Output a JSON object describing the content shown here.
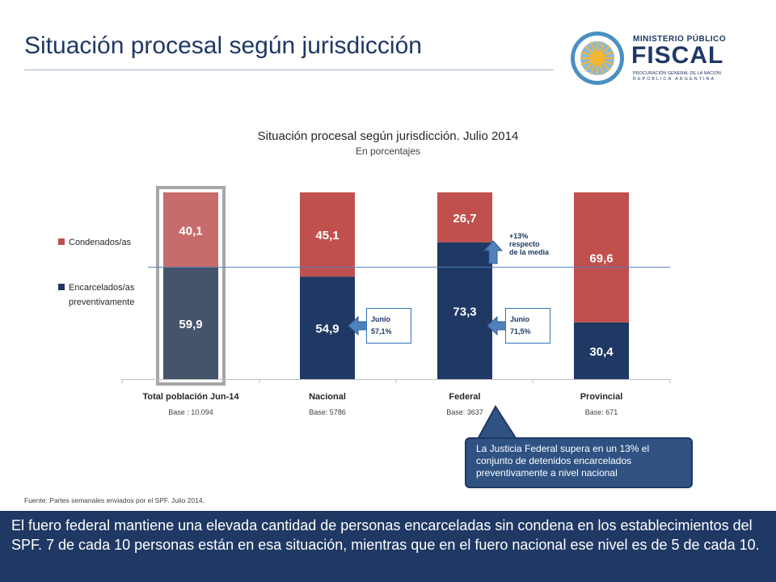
{
  "slide": {
    "title": "Situación procesal según jurisdicción",
    "source": "Fuente: Partes semanales enviados por el SPF. Julio 2014.",
    "footer_text": "El fuero federal mantiene una elevada cantidad de personas encarceladas sin condena en los establecimientos del SPF. 7 de cada 10 personas están en esa situación, mientras que en el fuero nacional ese nivel es de 5 de cada 10."
  },
  "logo": {
    "line1": "MINISTERIO PÚBLICO",
    "line2": "FISCAL",
    "line3": "PROCURACIÓN GENERAL DE LA NACIÓN",
    "line4": "REPÚBLICA ARGENTINA",
    "color": "#1f3864"
  },
  "chart_data": {
    "type": "bar",
    "stacked": true,
    "title": "Situación procesal según jurisdicción. Julio 2014",
    "subtitle": "En porcentajes",
    "categories": [
      "Total población Jun-14",
      "Nacional",
      "Federal",
      "Provincial"
    ],
    "bases": [
      "Base : 10.094",
      "Base: 5786",
      "Base: 3637",
      "Base: 671"
    ],
    "series": [
      {
        "name": "Encarcelados/as preventivamente",
        "values": [
          59.9,
          54.9,
          73.3,
          30.4
        ],
        "labels": [
          "59,9",
          "54,9",
          "73,3",
          "30,4"
        ],
        "color": "#1f3864",
        "highlight_color": "#44546a"
      },
      {
        "name": "Condenados/as",
        "values": [
          40.1,
          45.1,
          26.7,
          69.6
        ],
        "labels": [
          "40,1",
          "45,1",
          "26,7",
          "69,6"
        ],
        "color": "#c0504d",
        "highlight_color": "#c86b6b"
      }
    ],
    "ylim": [
      0,
      100
    ],
    "reference_line": 59.9,
    "legend_position": "left",
    "highlighted_category": "Total población Jun-14",
    "annotations": {
      "nacional_june": {
        "line1": "Junio",
        "line2": "57,1%"
      },
      "federal_june": {
        "line1": "Junio",
        "line2": "71,5%"
      },
      "federal_vs_mean": {
        "line1": "+13%",
        "line2": "respecto",
        "line3": "de la media"
      },
      "callout": "La Justicia Federal supera en un 13% el conjunto de detenidos encarcelados preventivamente a nivel nacional"
    }
  }
}
